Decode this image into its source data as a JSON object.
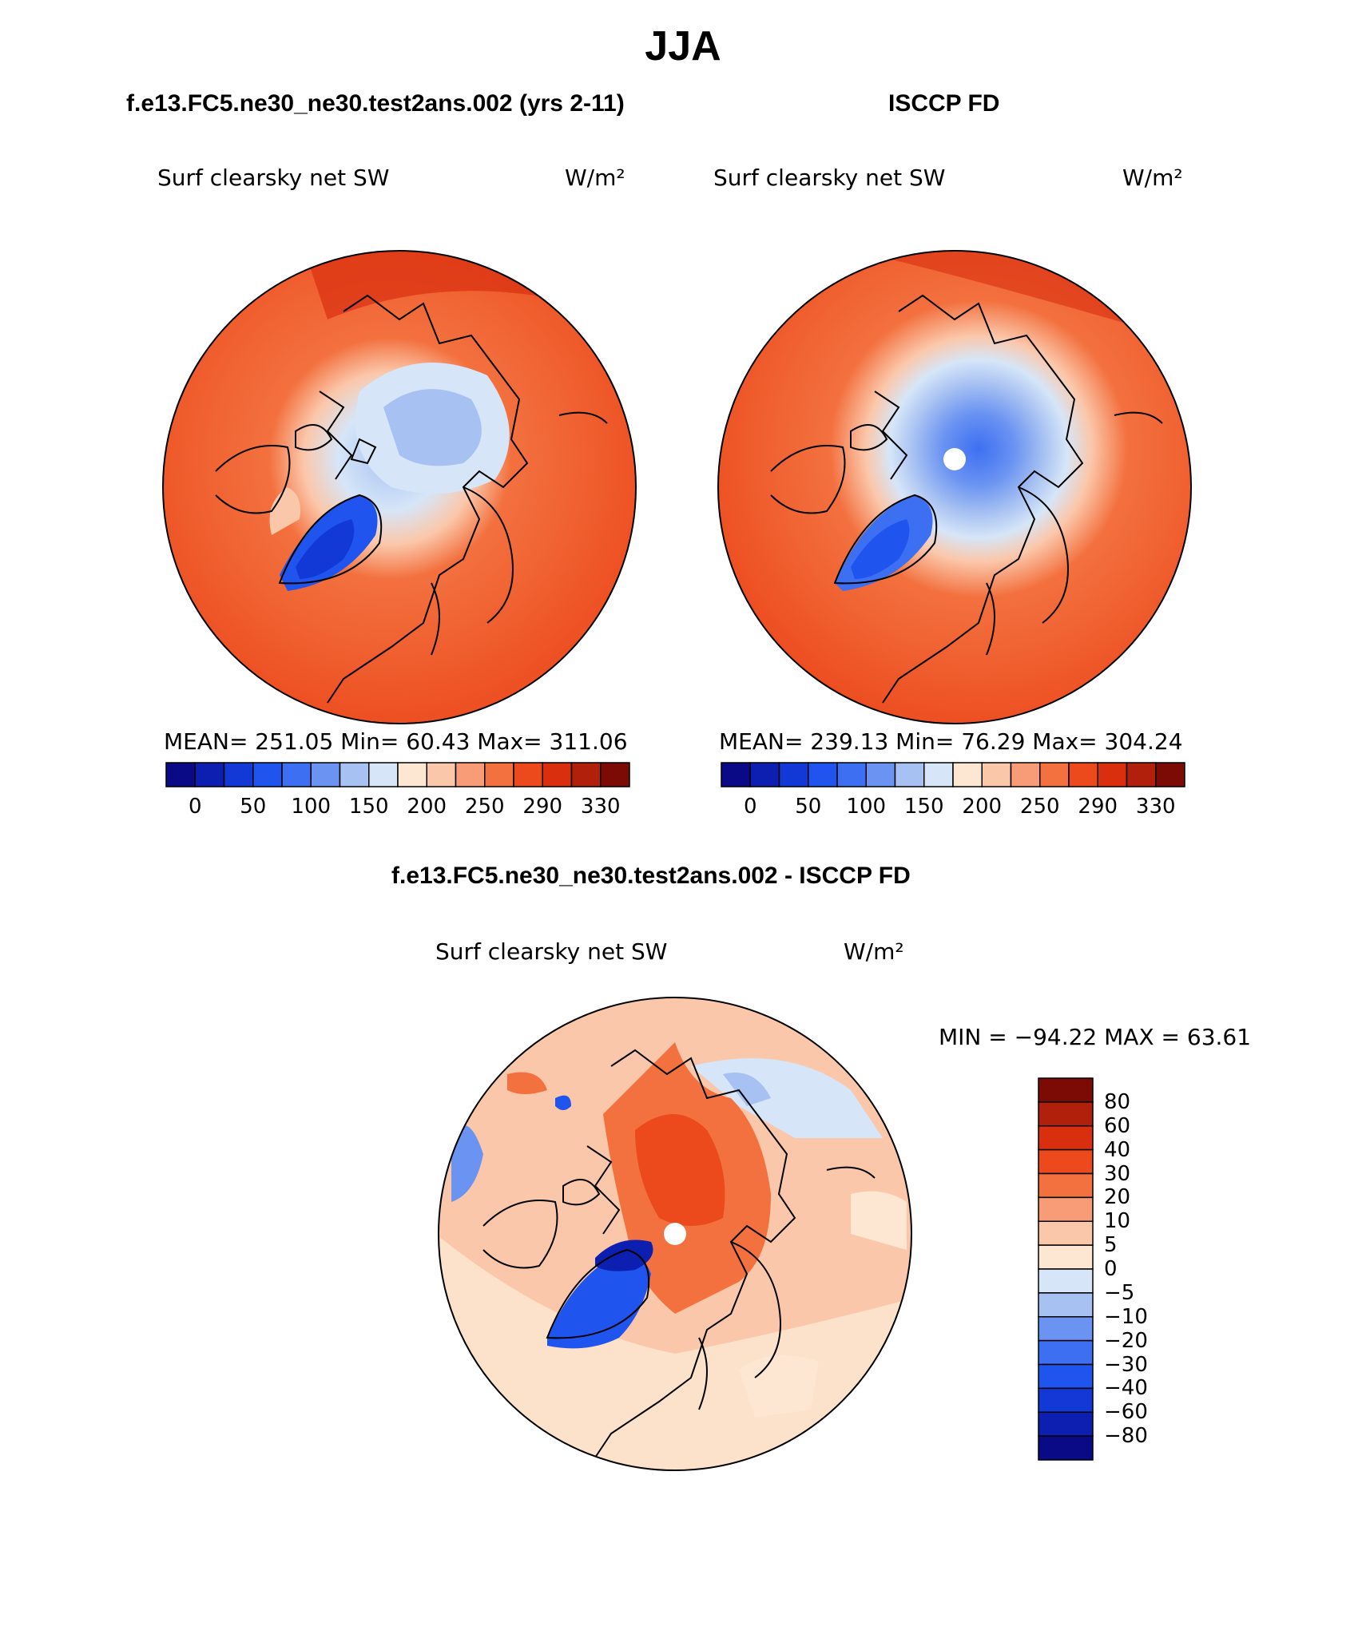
{
  "page": {
    "title": "JJA",
    "panel_left_title": "f.e13.FC5.ne30_ne30.test2ans.002 (yrs 2-11)",
    "panel_right_title": "ISCCP FD",
    "panel_diff_title": "f.e13.FC5.ne30_ne30.test2ans.002 - ISCCP FD"
  },
  "variable": {
    "name": "Surf clearsky net SW",
    "units": "W/m²"
  },
  "stats": {
    "left": "MEAN= 251.05   Min=   60.43   Max= 311.06",
    "right": "MEAN= 239.13   Min=   76.29   Max= 304.24",
    "diff": "MIN = −94.22 MAX =   63.61"
  },
  "colorbar_main": {
    "colors": [
      "#0a0a86",
      "#0d1fb0",
      "#1238d6",
      "#1f55ee",
      "#3d6ff2",
      "#6a93f2",
      "#a7c1f2",
      "#d6e6f8",
      "#fde7d3",
      "#fbc7aa",
      "#f79c76",
      "#f3713f",
      "#ec4a1d",
      "#d92f0f",
      "#b1200b",
      "#7c0b05"
    ],
    "labels": [
      "0",
      "50",
      "100",
      "150",
      "200",
      "250",
      "290",
      "330"
    ]
  },
  "colorbar_diff": {
    "colors": [
      "#7c0b05",
      "#b1200b",
      "#d92f0f",
      "#ec4a1d",
      "#f3713f",
      "#f79c76",
      "#fbc7aa",
      "#fde7d3",
      "#d6e6f8",
      "#a7c1f2",
      "#6a93f2",
      "#3d6ff2",
      "#1f55ee",
      "#1238d6",
      "#0d1fb0",
      "#0a0a86"
    ],
    "labels": [
      "80",
      "60",
      "40",
      "30",
      "20",
      "10",
      "5",
      "0",
      "−5",
      "−10",
      "−20",
      "−30",
      "−40",
      "−60",
      "−80"
    ]
  }
}
